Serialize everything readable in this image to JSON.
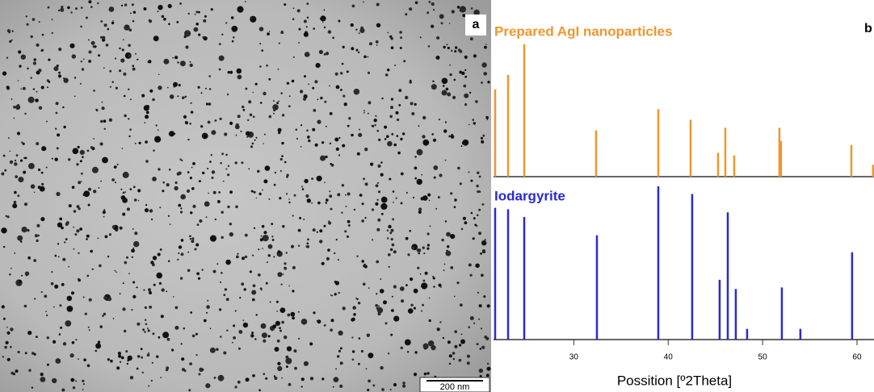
{
  "image_panel": {
    "label": "a",
    "scale_bar": "200 nm"
  },
  "chart_data": {
    "type": "stick",
    "panel_label": "b",
    "x_label": "Possition [º2Theta]",
    "xlim": [
      21.5,
      61.8
    ],
    "xticks": [
      30,
      40,
      50,
      60
    ],
    "series": [
      {
        "name": "Prepared AgI nanoparticles",
        "color": "#f0962e",
        "ylim": [
          0,
          100
        ],
        "x": [
          21.67,
          23.04,
          24.75,
          32.36,
          38.95,
          42.37,
          45.28,
          46.05,
          46.99,
          51.78,
          51.95,
          59.4,
          61.7
        ],
        "values": [
          66,
          77,
          100,
          35,
          51,
          43,
          18,
          37,
          16,
          37,
          27,
          24,
          9
        ]
      },
      {
        "name": "Iodargyrite",
        "color": "#2a2ad0",
        "ylim": [
          0,
          100
        ],
        "x": [
          21.67,
          23.04,
          24.75,
          32.45,
          38.95,
          42.54,
          45.45,
          46.31,
          47.16,
          48.36,
          52.04,
          54.0,
          59.48
        ],
        "values": [
          86,
          85,
          80,
          68,
          100,
          95,
          39,
          83,
          33,
          7,
          34,
          7,
          57
        ]
      }
    ]
  }
}
